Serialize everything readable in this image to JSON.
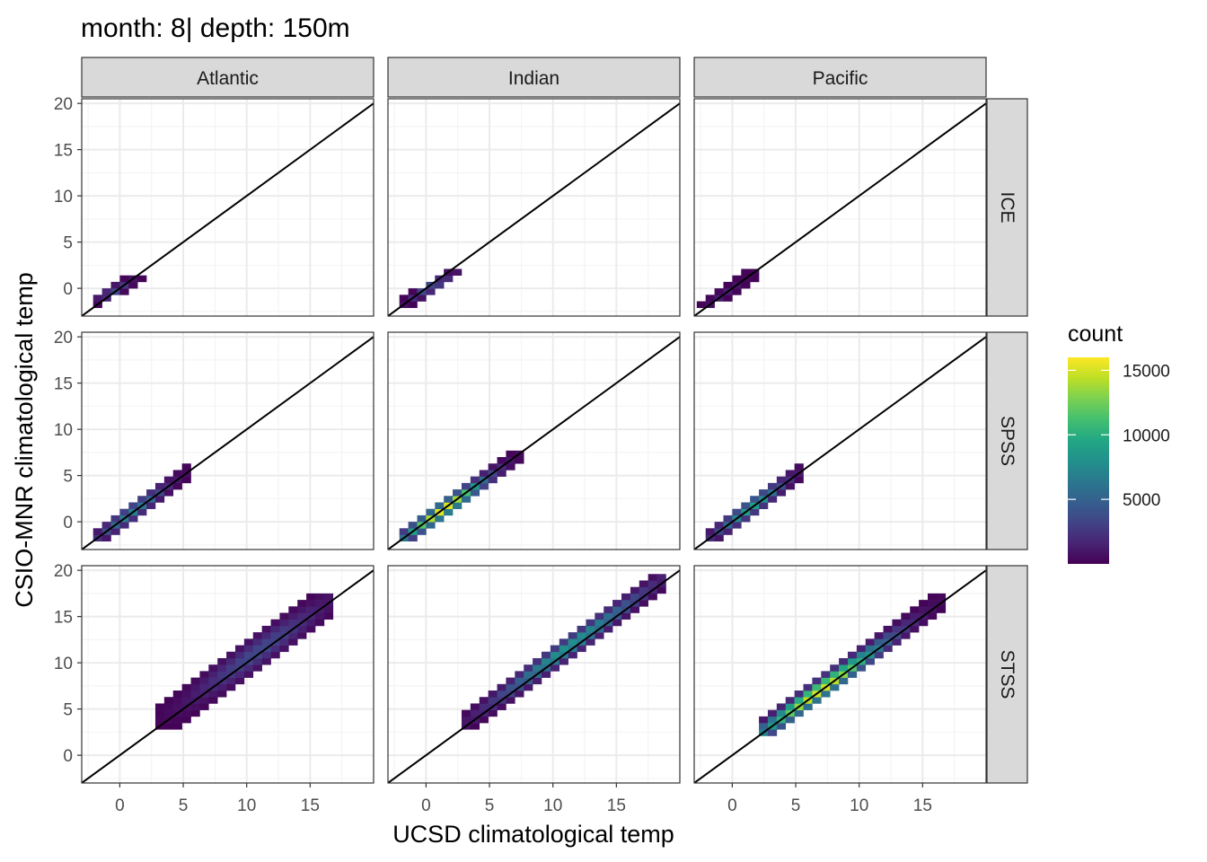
{
  "chart_data": {
    "type": "heatmap",
    "title": "month: 8| depth: 150m",
    "xlabel": "UCSD climatological temp",
    "ylabel": "CSIO-MNR climatological temp",
    "xlim": [
      -3,
      20
    ],
    "ylim": [
      -3,
      20.5
    ],
    "x_ticks": [
      0,
      5,
      10,
      15
    ],
    "y_ticks": [
      0,
      5,
      10,
      15,
      20
    ],
    "bin_width": 0.7,
    "grid": true,
    "identity_line": true,
    "legend": {
      "title": "count",
      "position": "right",
      "ticks": [
        5000,
        10000,
        15000
      ],
      "min": 0,
      "max": 16000,
      "colormap": "viridis"
    },
    "col_facets": [
      "Atlantic",
      "Indian",
      "Pacific"
    ],
    "row_facets": [
      "ICE",
      "SPSS",
      "STSS"
    ],
    "panels": [
      {
        "row": "ICE",
        "col": "Atlantic",
        "ridge": [
          [
            -2.0,
            -1.3,
            0.8
          ],
          [
            0.0,
            1.5,
            0.8
          ]
        ],
        "peak": 4000,
        "blobs": [
          {
            "x": [
              -2,
              1.5
            ],
            "y": [
              -1.5,
              1.3
            ],
            "w": 0.8
          }
        ],
        "peak_at": [
          -0.3,
          -0.4
        ]
      },
      {
        "row": "ICE",
        "col": "Indian",
        "ridge": [
          [
            -1.8,
            -1.5,
            0.8
          ],
          [
            2.5,
            1.8,
            0.8
          ]
        ],
        "peak": 4500,
        "blobs": [
          {
            "x": [
              -1.9,
              2.6
            ],
            "y": [
              -1.8,
              2.0
            ],
            "w": 0.8
          }
        ],
        "peak_at": [
          0.5,
          0.0
        ]
      },
      {
        "row": "ICE",
        "col": "Pacific",
        "ridge": [
          [
            -2.0,
            -1.6,
            0.8
          ],
          [
            1.8,
            1.8,
            0.8
          ]
        ],
        "peak": 1500,
        "blobs": [
          {
            "x": [
              -2.1,
              2.0
            ],
            "y": [
              -1.9,
              1.9
            ],
            "w": 0.8
          }
        ],
        "peak_at": [
          -0.5,
          -0.8
        ]
      },
      {
        "row": "SPSS",
        "col": "Atlantic",
        "ridge": [
          [
            -1.5,
            -1.5,
            1.0
          ],
          [
            5.0,
            5.0,
            0.8
          ]
        ],
        "peak": 7000,
        "blobs": [
          {
            "x": [
              -1.8,
              5.5
            ],
            "y": [
              -1.8,
              5.7
            ],
            "w": 1.2
          }
        ],
        "peak_at": [
          1.0,
          1.0
        ]
      },
      {
        "row": "SPSS",
        "col": "Indian",
        "ridge": [
          [
            -1.5,
            -1.5,
            1.0
          ],
          [
            7.0,
            7.0,
            0.8
          ]
        ],
        "peak": 15500,
        "blobs": [
          {
            "x": [
              -1.7,
              7.5
            ],
            "y": [
              -1.7,
              7.4
            ],
            "w": 1.2
          }
        ],
        "peak_at": [
          1.5,
          1.2
        ]
      },
      {
        "row": "SPSS",
        "col": "Pacific",
        "ridge": [
          [
            -1.5,
            -1.5,
            1.0
          ],
          [
            5.5,
            5.5,
            0.8
          ]
        ],
        "peak": 9000,
        "blobs": [
          {
            "x": [
              -1.8,
              5.6
            ],
            "y": [
              -1.8,
              5.8
            ],
            "w": 1.2
          }
        ],
        "peak_at": [
          1.5,
          1.5
        ]
      },
      {
        "row": "STSS",
        "col": "Atlantic",
        "ridge": [
          [
            3.0,
            3.5,
            0.8
          ],
          [
            16.5,
            16.5,
            2.0
          ]
        ],
        "peak": 3500,
        "blobs": [
          {
            "x": [
              2.8,
              16.7
            ],
            "y": [
              3.2,
              17.0
            ],
            "w": 2.4
          }
        ],
        "peak_at": [
          11.0,
          11.0
        ]
      },
      {
        "row": "STSS",
        "col": "Indian",
        "ridge": [
          [
            3.0,
            3.5,
            0.8
          ],
          [
            18.5,
            19.0,
            1.5
          ]
        ],
        "peak": 8500,
        "blobs": [
          {
            "x": [
              2.8,
              18.8
            ],
            "y": [
              3.2,
              19.3
            ],
            "w": 1.5
          }
        ],
        "peak_at": [
          11.5,
          11.5
        ]
      },
      {
        "row": "STSS",
        "col": "Pacific",
        "ridge": [
          [
            2.5,
            2.5,
            0.5
          ],
          [
            16.5,
            16.5,
            1.5
          ]
        ],
        "peak": 15500,
        "blobs": [
          {
            "x": [
              2.3,
              16.7
            ],
            "y": [
              2.4,
              17.0
            ],
            "w": 1.5
          }
        ],
        "peak_at": [
          7.0,
          7.0
        ]
      }
    ]
  }
}
